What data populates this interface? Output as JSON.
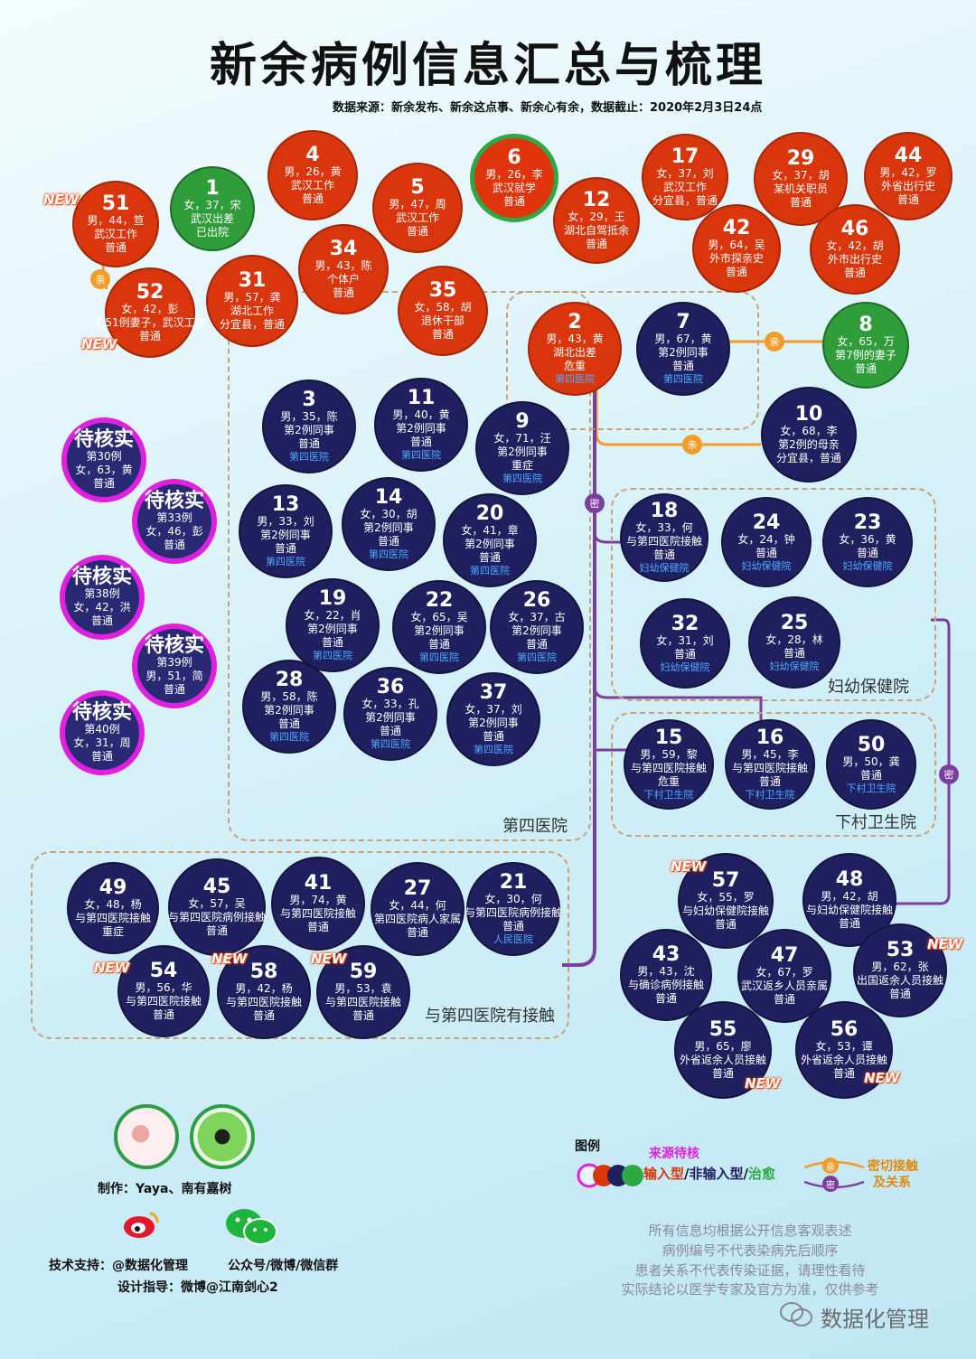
{
  "title": "新余病例信息汇总与梳理",
  "source": "数据来源：新余发布、新余这点事、新余心有余，数据截止：2020年2月3日24点",
  "colors": {
    "import": "#d9360d",
    "local": "#202060",
    "cured": "#2ea845",
    "pending": "#e020e0",
    "kin": "#f29d2b",
    "close": "#7a3f9c"
  },
  "new_label": "NEW",
  "kin_label": "亲",
  "close_label": "密",
  "groups": {
    "hospital4": "第四医院",
    "fuyou": "妇幼保健院",
    "xiacun": "下村卫生院",
    "contact4": "与第四医院有接触"
  },
  "nodes": {
    "n51": {
      "num": "51",
      "l1": "男，44，笪",
      "l2": "武汉工作",
      "l3": "普通"
    },
    "n1": {
      "num": "1",
      "l1": "女，37，宋",
      "l2": "武汉出差",
      "l3": "已出院"
    },
    "n4": {
      "num": "4",
      "l1": "男，26，黄",
      "l2": "武汉工作",
      "l3": "普通"
    },
    "n5": {
      "num": "5",
      "l1": "男，47，周",
      "l2": "武汉工作",
      "l3": "普通"
    },
    "n6": {
      "num": "6",
      "l1": "男，26，李",
      "l2": "武汉就学",
      "l3": "普通"
    },
    "n12": {
      "num": "12",
      "l1": "女，29，王",
      "l2": "湖北自驾抵余",
      "l3": "普通"
    },
    "n17": {
      "num": "17",
      "l1": "女，37，刘",
      "l2": "武汉工作",
      "l3": "分宜县，普通"
    },
    "n29": {
      "num": "29",
      "l1": "女，37，胡",
      "l2": "某机关职员",
      "l3": "普通"
    },
    "n44": {
      "num": "44",
      "l1": "男，42，罗",
      "l2": "外省出行史",
      "l3": "普通"
    },
    "n52": {
      "num": "52",
      "l1": "女，42，彭",
      "l2": "第51例妻子，武汉工作",
      "l3": "普通"
    },
    "n31": {
      "num": "31",
      "l1": "男，57，龚",
      "l2": "湖北工作",
      "l3": "分宜县，普通"
    },
    "n34": {
      "num": "34",
      "l1": "男，43，陈",
      "l2": "个体户",
      "l3": "普通"
    },
    "n35": {
      "num": "35",
      "l1": "女，58，胡",
      "l2": "退休干部",
      "l3": "普通"
    },
    "n42": {
      "num": "42",
      "l1": "男，64，吴",
      "l2": "外市探亲史",
      "l3": "普通"
    },
    "n46": {
      "num": "46",
      "l1": "女，42，胡",
      "l2": "外市出行史",
      "l3": "普通"
    },
    "n2": {
      "num": "2",
      "l1": "男，43，黄",
      "l2": "湖北出差",
      "l3": "危重",
      "h": "第四医院"
    },
    "n7": {
      "num": "7",
      "l1": "男，67，黄",
      "l2": "第2例同事",
      "l3": "普通",
      "h": "第四医院"
    },
    "n8": {
      "num": "8",
      "l1": "女，65，万",
      "l2": "第7例的妻子",
      "l3": "普通"
    },
    "n10": {
      "num": "10",
      "l1": "女，68，李",
      "l2": "第2例的母亲",
      "l3": "分宜县，普通"
    },
    "n3": {
      "num": "3",
      "l1": "男，35，陈",
      "l2": "第2例同事",
      "l3": "普通",
      "h": "第四医院"
    },
    "n11": {
      "num": "11",
      "l1": "男，40，黄",
      "l2": "第2例同事",
      "l3": "普通",
      "h": "第四医院"
    },
    "n9": {
      "num": "9",
      "l1": "女，71，汪",
      "l2": "第2例同事",
      "l3": "重症",
      "h": "第四医院"
    },
    "n13": {
      "num": "13",
      "l1": "男，33，刘",
      "l2": "第2例同事",
      "l3": "普通",
      "h": "第四医院"
    },
    "n14": {
      "num": "14",
      "l1": "女，30，胡",
      "l2": "第2例同事",
      "l3": "普通",
      "h": "第四医院"
    },
    "n20": {
      "num": "20",
      "l1": "女，41，章",
      "l2": "第2例同事",
      "l3": "普通",
      "h": "第四医院"
    },
    "n19": {
      "num": "19",
      "l1": "女，22，肖",
      "l2": "第2例同事",
      "l3": "普通",
      "h": "第四医院"
    },
    "n22": {
      "num": "22",
      "l1": "女，65，吴",
      "l2": "第2例同事",
      "l3": "普通",
      "h": "第四医院"
    },
    "n26": {
      "num": "26",
      "l1": "女，37，古",
      "l2": "第2例同事",
      "l3": "普通",
      "h": "第四医院"
    },
    "n28": {
      "num": "28",
      "l1": "男，58，陈",
      "l2": "第2例同事",
      "l3": "普通",
      "h": "第四医院"
    },
    "n36": {
      "num": "36",
      "l1": "女，33，孔",
      "l2": "第2例同事",
      "l3": "普通",
      "h": "第四医院"
    },
    "n37": {
      "num": "37",
      "l1": "女，37，刘",
      "l2": "第2例同事",
      "l3": "普通",
      "h": "第四医院"
    },
    "n18": {
      "num": "18",
      "l1": "女，33，何",
      "l2": "与第四医院接触",
      "l3": "普通",
      "h": "妇幼保健院"
    },
    "n24": {
      "num": "24",
      "l1": "女，24，钟",
      "l2": "普通",
      "l3": "",
      "h": "妇幼保健院"
    },
    "n23": {
      "num": "23",
      "l1": "女，36，黄",
      "l2": "普通",
      "l3": "",
      "h": "妇幼保健院"
    },
    "n32": {
      "num": "32",
      "l1": "女，31，刘",
      "l2": "普通",
      "l3": "",
      "h": "妇幼保健院"
    },
    "n25": {
      "num": "25",
      "l1": "女，28，林",
      "l2": "普通",
      "l3": "",
      "h": "妇幼保健院"
    },
    "n15": {
      "num": "15",
      "l1": "男，59，黎",
      "l2": "与第四医院接触",
      "l3": "危重",
      "h": "下村卫生院"
    },
    "n16": {
      "num": "16",
      "l1": "男，45，李",
      "l2": "与第四医院接触",
      "l3": "普通",
      "h": "下村卫生院"
    },
    "n50": {
      "num": "50",
      "l1": "男，50，龚",
      "l2": "普通",
      "l3": "",
      "h": "下村卫生院"
    },
    "n49": {
      "num": "49",
      "l1": "女，48，杨",
      "l2": "与第四医院接触",
      "l3": "重症"
    },
    "n45": {
      "num": "45",
      "l1": "女，57，吴",
      "l2": "与第四医院病例接触",
      "l3": "普通"
    },
    "n41": {
      "num": "41",
      "l1": "男，74，黄",
      "l2": "与第四医院接触",
      "l3": "普通"
    },
    "n27": {
      "num": "27",
      "l1": "女，44，何",
      "l2": "第四医院病人家属",
      "l3": "普通"
    },
    "n21": {
      "num": "21",
      "l1": "女，30，何",
      "l2": "与第四医院病例接触",
      "l3": "普通",
      "h": "人民医院"
    },
    "n54": {
      "num": "54",
      "l1": "男，56，华",
      "l2": "与第四医院接触",
      "l3": "普通"
    },
    "n58": {
      "num": "58",
      "l1": "男，42，杨",
      "l2": "与第四医院接触",
      "l3": "普通"
    },
    "n59": {
      "num": "59",
      "l1": "男，53，袁",
      "l2": "与第四医院接触",
      "l3": "普通"
    },
    "n57": {
      "num": "57",
      "l1": "女，55，罗",
      "l2": "与妇幼保健院接触",
      "l3": "普通"
    },
    "n48": {
      "num": "48",
      "l1": "男，42，胡",
      "l2": "与妇幼保健院接触",
      "l3": "普通"
    },
    "n43": {
      "num": "43",
      "l1": "男，43，沈",
      "l2": "与确诊病例接触",
      "l3": "普通"
    },
    "n47": {
      "num": "47",
      "l1": "女，67，罗",
      "l2": "武汉返乡人员亲属",
      "l3": "普通"
    },
    "n53": {
      "num": "53",
      "l1": "男，62，张",
      "l2": "出国返余人员接触",
      "l3": "普通"
    },
    "n55": {
      "num": "55",
      "l1": "男，65，廖",
      "l2": "外省返余人员接触",
      "l3": "普通"
    },
    "n56": {
      "num": "56",
      "l1": "女，53，谭",
      "l2": "外省返余人员接触",
      "l3": "普通"
    },
    "p30": {
      "num": "待核实",
      "l1": "第30例",
      "l2": "女，63，黄",
      "l3": "普通"
    },
    "p33": {
      "num": "待核实",
      "l1": "第33例",
      "l2": "女，46，彭",
      "l3": "普通"
    },
    "p38": {
      "num": "待核实",
      "l1": "第38例",
      "l2": "女，42，洪",
      "l3": "普通"
    },
    "p39": {
      "num": "待核实",
      "l1": "第39例",
      "l2": "男，51，简",
      "l3": "普通"
    },
    "p40": {
      "num": "待核实",
      "l1": "第40例",
      "l2": "女，31，周",
      "l3": "普通"
    }
  },
  "credits": {
    "made": "制作：Yaya、南有嘉树",
    "tech": "技术支持：@数据化管理",
    "wechat": "公众号/微博/微信群",
    "design": "设计指导：微博@江南剑心2"
  },
  "legend": {
    "title": "图例",
    "pending": "来源待核",
    "import": "输入型",
    "sep1": "/",
    "local": "非输入型",
    "sep2": "/",
    "cured": "治愈",
    "rel": "密切接触",
    "rel2": "及关系"
  },
  "disclaimer": [
    "所有信息均根据公开信息客观表述",
    "病例编号不代表染病先后顺序",
    "患者关系不代表传染证据，请理性看待",
    "实际结论以医学专家及官方为准，仅供参考"
  ],
  "watermark": "数据化管理"
}
